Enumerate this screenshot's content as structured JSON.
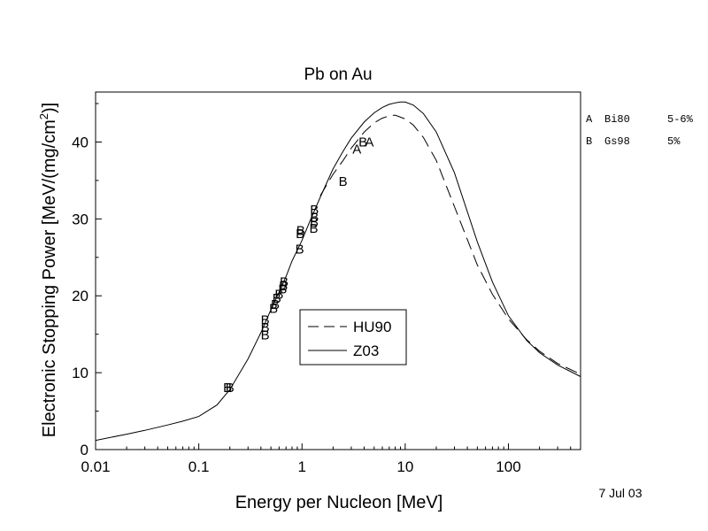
{
  "chart_data": {
    "type": "line",
    "title": "Pb on Au",
    "xlabel": "Energy per Nucleon [MeV]",
    "ylabel_prefix": "Electronic Stopping Power [MeV/(mg/cm",
    "ylabel_sup": "2",
    "ylabel_suffix": ")]",
    "x_scale": "log",
    "xlim": [
      0.01,
      500
    ],
    "ylim": [
      0,
      46.5
    ],
    "x_ticks": [
      0.01,
      0.1,
      1,
      10,
      100
    ],
    "x_tick_labels": [
      "0.01",
      "0.1",
      "1",
      "10",
      "100"
    ],
    "y_ticks": [
      0,
      10,
      20,
      30,
      40
    ],
    "y_tick_labels": [
      "0",
      "10",
      "20",
      "30",
      "40"
    ],
    "grid": false,
    "legend": {
      "placement": "center-left",
      "entries": [
        {
          "label": "HU90",
          "style": "dashed"
        },
        {
          "label": "Z03",
          "style": "solid"
        }
      ]
    },
    "series": [
      {
        "name": "HU90",
        "style": "dashed",
        "x": [
          1.5,
          2,
          2.5,
          3,
          4,
          5,
          6,
          7,
          8,
          10,
          12,
          15,
          20,
          30,
          50,
          70,
          100,
          150,
          200,
          300,
          500
        ],
        "y": [
          33.0,
          35.8,
          37.6,
          39.2,
          41.3,
          42.5,
          43.1,
          43.4,
          43.5,
          43.0,
          42.2,
          40.6,
          37.6,
          31.6,
          24.0,
          20.2,
          17.0,
          14.3,
          12.8,
          11.2,
          9.8
        ]
      },
      {
        "name": "Z03",
        "style": "solid",
        "x": [
          0.01,
          0.02,
          0.03,
          0.05,
          0.07,
          0.1,
          0.15,
          0.2,
          0.3,
          0.4,
          0.5,
          0.6,
          0.7,
          0.8,
          1.0,
          1.2,
          1.5,
          2,
          2.5,
          3,
          4,
          5,
          6,
          7,
          8,
          9,
          10,
          12,
          15,
          20,
          30,
          50,
          70,
          100,
          150,
          200,
          300,
          500
        ],
        "y": [
          1.2,
          2.0,
          2.5,
          3.2,
          3.7,
          4.3,
          5.8,
          7.8,
          11.8,
          15.2,
          18.2,
          20.5,
          22.5,
          24.5,
          27.2,
          29.8,
          32.8,
          36.5,
          38.8,
          40.5,
          42.6,
          43.8,
          44.5,
          44.9,
          45.1,
          45.2,
          45.2,
          44.8,
          43.7,
          41.3,
          36.0,
          27.0,
          21.8,
          17.4,
          14.2,
          12.6,
          11.0,
          9.5
        ]
      }
    ],
    "points": [
      {
        "label": "B",
        "x": 0.19,
        "y": 8.2
      },
      {
        "label": "B",
        "x": 0.2,
        "y": 8.2
      },
      {
        "label": "B",
        "x": 0.44,
        "y": 15.0
      },
      {
        "label": "B",
        "x": 0.44,
        "y": 16.0
      },
      {
        "label": "B",
        "x": 0.44,
        "y": 17.0
      },
      {
        "label": "B",
        "x": 0.53,
        "y": 18.5
      },
      {
        "label": "B",
        "x": 0.55,
        "y": 19.0
      },
      {
        "label": "B",
        "x": 0.57,
        "y": 19.8
      },
      {
        "label": "B",
        "x": 0.6,
        "y": 20.3
      },
      {
        "label": "B",
        "x": 0.65,
        "y": 21.0
      },
      {
        "label": "B",
        "x": 0.66,
        "y": 21.4
      },
      {
        "label": "B",
        "x": 0.67,
        "y": 21.9
      },
      {
        "label": "B",
        "x": 0.95,
        "y": 26.2
      },
      {
        "label": "B",
        "x": 0.96,
        "y": 28.2
      },
      {
        "label": "B",
        "x": 0.97,
        "y": 28.6
      },
      {
        "label": "B",
        "x": 1.3,
        "y": 28.9
      },
      {
        "label": "B",
        "x": 1.31,
        "y": 29.7
      },
      {
        "label": "B",
        "x": 1.32,
        "y": 30.3
      },
      {
        "label": "B",
        "x": 1.32,
        "y": 31.3
      },
      {
        "label": "B",
        "x": 2.5,
        "y": 35.0
      },
      {
        "label": "A",
        "x": 3.4,
        "y": 39.2
      },
      {
        "label": "B",
        "x": 3.9,
        "y": 40.1
      },
      {
        "label": "A",
        "x": 4.5,
        "y": 40.1
      }
    ],
    "reference_key": [
      {
        "code": "A",
        "ref": "Bi80",
        "error": "5-6%"
      },
      {
        "code": "B",
        "ref": "Gs98",
        "error": "5%"
      }
    ],
    "date": "7 Jul 03"
  }
}
